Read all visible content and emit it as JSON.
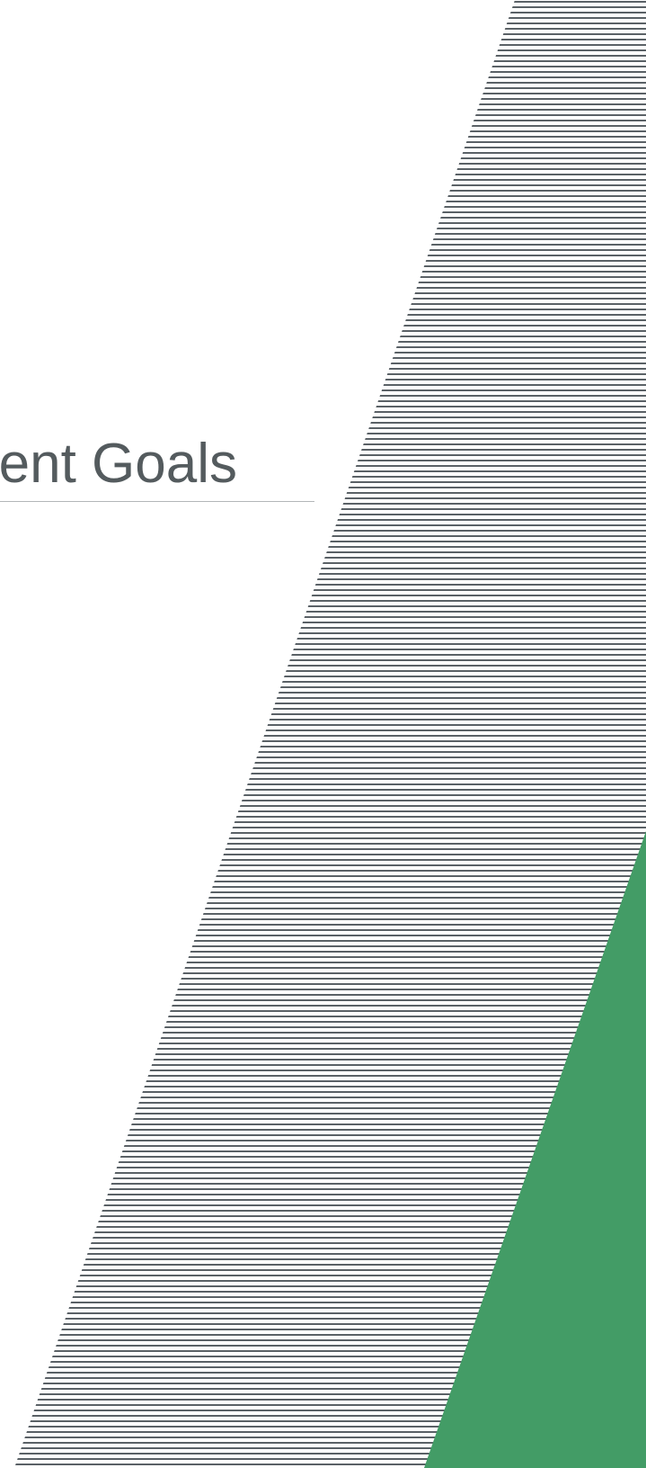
{
  "slide": {
    "title": "Engagement Goals"
  },
  "colors": {
    "background": "#ffffff",
    "title_text": "#545b5e",
    "divider": "#b3b6b8",
    "hatch_lines": "#5a6166",
    "accent_green": "#439c66"
  },
  "decorations": {
    "hatched_band": "hatched-diagonal-band",
    "green_triangle": "green-accent-triangle"
  }
}
